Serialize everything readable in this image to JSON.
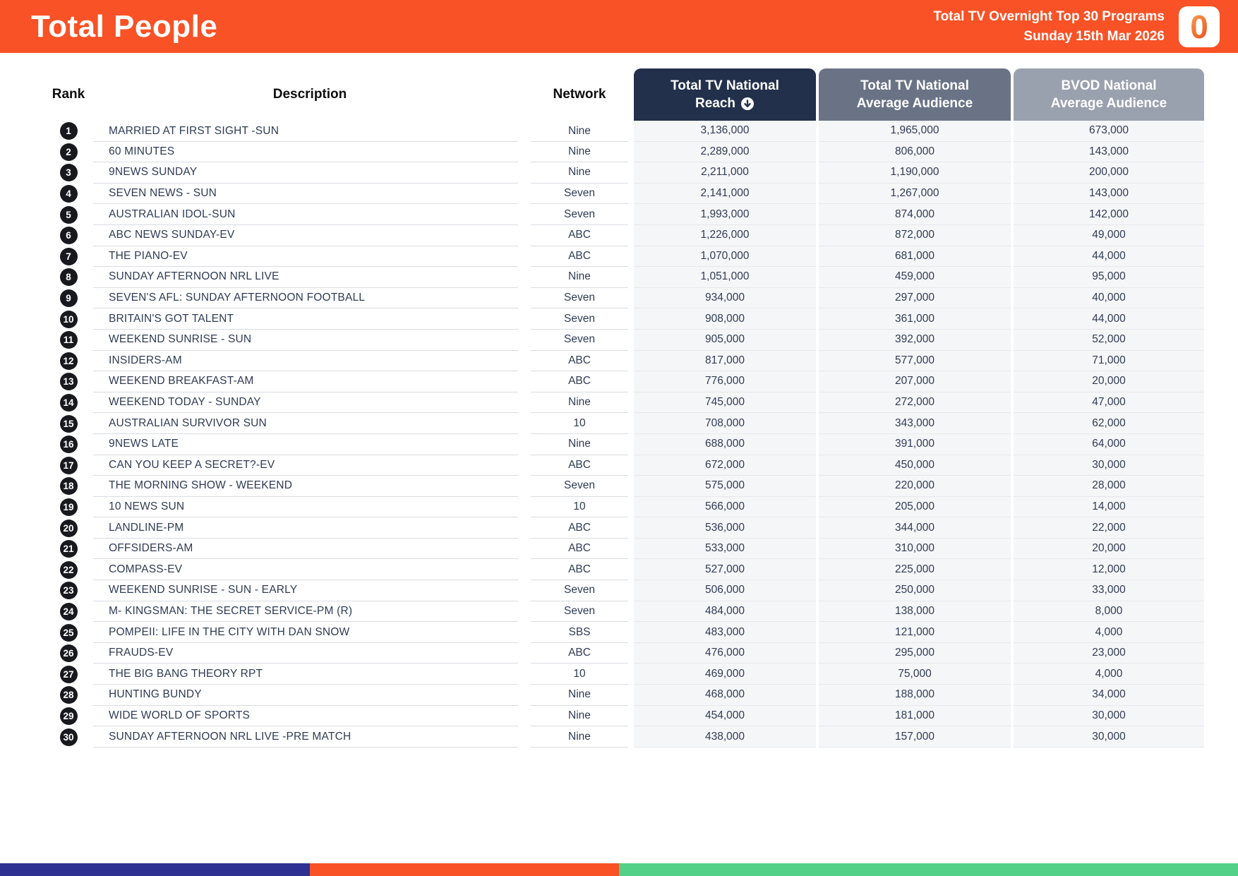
{
  "header": {
    "title": "Total People",
    "subtitle_line1": "Total TV Overnight Top 30 Programs",
    "subtitle_line2": "Sunday 15th Mar 2026",
    "logo_glyph": "0",
    "bg_color": "#F85226"
  },
  "table": {
    "columns": {
      "rank": "Rank",
      "description": "Description",
      "network": "Network",
      "reach_line1": "Total TV National",
      "reach_line2": "Reach",
      "avg_line1": "Total TV National",
      "avg_line2": "Average Audience",
      "bvod_line1": "BVOD National",
      "bvod_line2": "Average Audience"
    },
    "sort": {
      "column": "reach",
      "direction": "descending",
      "icon": "circle-down-arrow"
    },
    "header_colors": {
      "reach_bg": "#22304B",
      "avg_bg": "#6A7386",
      "bvod_bg": "#9AA1AE"
    },
    "rows": [
      {
        "rank": "1",
        "description": "MARRIED AT FIRST SIGHT -SUN",
        "network": "Nine",
        "reach": "3,136,000",
        "avg_audience": "1,965,000",
        "bvod": "673,000"
      },
      {
        "rank": "2",
        "description": "60 MINUTES",
        "network": "Nine",
        "reach": "2,289,000",
        "avg_audience": "806,000",
        "bvod": "143,000"
      },
      {
        "rank": "3",
        "description": "9NEWS SUNDAY",
        "network": "Nine",
        "reach": "2,211,000",
        "avg_audience": "1,190,000",
        "bvod": "200,000"
      },
      {
        "rank": "4",
        "description": "SEVEN NEWS - SUN",
        "network": "Seven",
        "reach": "2,141,000",
        "avg_audience": "1,267,000",
        "bvod": "143,000"
      },
      {
        "rank": "5",
        "description": "AUSTRALIAN IDOL-SUN",
        "network": "Seven",
        "reach": "1,993,000",
        "avg_audience": "874,000",
        "bvod": "142,000"
      },
      {
        "rank": "6",
        "description": "ABC NEWS SUNDAY-EV",
        "network": "ABC",
        "reach": "1,226,000",
        "avg_audience": "872,000",
        "bvod": "49,000"
      },
      {
        "rank": "7",
        "description": "THE PIANO-EV",
        "network": "ABC",
        "reach": "1,070,000",
        "avg_audience": "681,000",
        "bvod": "44,000"
      },
      {
        "rank": "8",
        "description": "SUNDAY AFTERNOON NRL LIVE",
        "network": "Nine",
        "reach": "1,051,000",
        "avg_audience": "459,000",
        "bvod": "95,000"
      },
      {
        "rank": "9",
        "description": "SEVEN'S AFL: SUNDAY AFTERNOON FOOTBALL",
        "network": "Seven",
        "reach": "934,000",
        "avg_audience": "297,000",
        "bvod": "40,000"
      },
      {
        "rank": "10",
        "description": "BRITAIN'S GOT TALENT",
        "network": "Seven",
        "reach": "908,000",
        "avg_audience": "361,000",
        "bvod": "44,000"
      },
      {
        "rank": "11",
        "description": "WEEKEND SUNRISE - SUN",
        "network": "Seven",
        "reach": "905,000",
        "avg_audience": "392,000",
        "bvod": "52,000"
      },
      {
        "rank": "12",
        "description": "INSIDERS-AM",
        "network": "ABC",
        "reach": "817,000",
        "avg_audience": "577,000",
        "bvod": "71,000"
      },
      {
        "rank": "13",
        "description": "WEEKEND BREAKFAST-AM",
        "network": "ABC",
        "reach": "776,000",
        "avg_audience": "207,000",
        "bvod": "20,000"
      },
      {
        "rank": "14",
        "description": "WEEKEND TODAY - SUNDAY",
        "network": "Nine",
        "reach": "745,000",
        "avg_audience": "272,000",
        "bvod": "47,000"
      },
      {
        "rank": "15",
        "description": "AUSTRALIAN SURVIVOR SUN",
        "network": "10",
        "reach": "708,000",
        "avg_audience": "343,000",
        "bvod": "62,000"
      },
      {
        "rank": "16",
        "description": "9NEWS LATE",
        "network": "Nine",
        "reach": "688,000",
        "avg_audience": "391,000",
        "bvod": "64,000"
      },
      {
        "rank": "17",
        "description": "CAN YOU KEEP A SECRET?-EV",
        "network": "ABC",
        "reach": "672,000",
        "avg_audience": "450,000",
        "bvod": "30,000"
      },
      {
        "rank": "18",
        "description": "THE MORNING SHOW - WEEKEND",
        "network": "Seven",
        "reach": "575,000",
        "avg_audience": "220,000",
        "bvod": "28,000"
      },
      {
        "rank": "19",
        "description": "10 NEWS SUN",
        "network": "10",
        "reach": "566,000",
        "avg_audience": "205,000",
        "bvod": "14,000"
      },
      {
        "rank": "20",
        "description": "LANDLINE-PM",
        "network": "ABC",
        "reach": "536,000",
        "avg_audience": "344,000",
        "bvod": "22,000"
      },
      {
        "rank": "21",
        "description": "OFFSIDERS-AM",
        "network": "ABC",
        "reach": "533,000",
        "avg_audience": "310,000",
        "bvod": "20,000"
      },
      {
        "rank": "22",
        "description": "COMPASS-EV",
        "network": "ABC",
        "reach": "527,000",
        "avg_audience": "225,000",
        "bvod": "12,000"
      },
      {
        "rank": "23",
        "description": "WEEKEND SUNRISE - SUN - EARLY",
        "network": "Seven",
        "reach": "506,000",
        "avg_audience": "250,000",
        "bvod": "33,000"
      },
      {
        "rank": "24",
        "description": "M- KINGSMAN: THE SECRET SERVICE-PM (R)",
        "network": "Seven",
        "reach": "484,000",
        "avg_audience": "138,000",
        "bvod": "8,000"
      },
      {
        "rank": "25",
        "description": "POMPEII: LIFE IN THE CITY WITH DAN SNOW",
        "network": "SBS",
        "reach": "483,000",
        "avg_audience": "121,000",
        "bvod": "4,000"
      },
      {
        "rank": "26",
        "description": "FRAUDS-EV",
        "network": "ABC",
        "reach": "476,000",
        "avg_audience": "295,000",
        "bvod": "23,000"
      },
      {
        "rank": "27",
        "description": "THE BIG BANG THEORY RPT",
        "network": "10",
        "reach": "469,000",
        "avg_audience": "75,000",
        "bvod": "4,000"
      },
      {
        "rank": "28",
        "description": "HUNTING BUNDY",
        "network": "Nine",
        "reach": "468,000",
        "avg_audience": "188,000",
        "bvod": "34,000"
      },
      {
        "rank": "29",
        "description": "WIDE WORLD OF SPORTS",
        "network": "Nine",
        "reach": "454,000",
        "avg_audience": "181,000",
        "bvod": "30,000"
      },
      {
        "rank": "30",
        "description": "SUNDAY AFTERNOON NRL LIVE -PRE MATCH",
        "network": "Nine",
        "reach": "438,000",
        "avg_audience": "157,000",
        "bvod": "30,000"
      }
    ]
  },
  "footer": {
    "segment_colors": [
      "#2E3192",
      "#F85226",
      "#54D189"
    ]
  }
}
